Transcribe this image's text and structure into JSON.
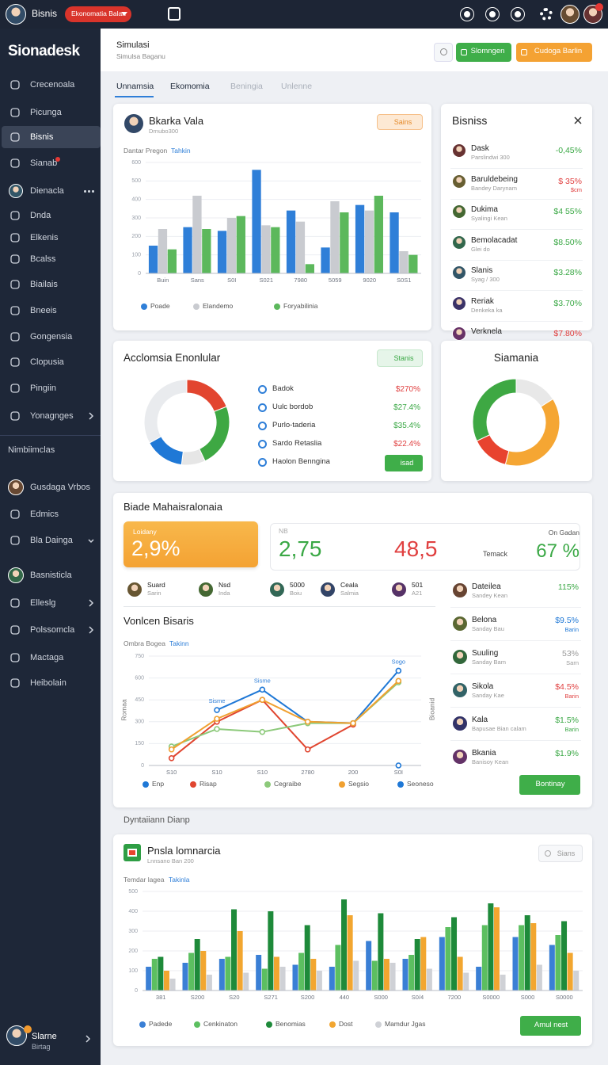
{
  "topbar": {
    "brand": "Bisnis",
    "pill": "Ekonomatia Balan"
  },
  "sidebar": {
    "logo": "Sionadesk",
    "items": [
      "Crecenoala",
      "Picunga",
      "Bisnis",
      "Sianab",
      "Dienacla",
      "Dnda",
      "Elkenis",
      "Bcalss",
      "Biailais",
      "Bneeis",
      "Gongensia",
      "Clopusia",
      "Pingiin",
      "Yonagnges"
    ],
    "active": 2,
    "section": "Nimbiimclas",
    "items2": [
      "Gusdaga Vrbos",
      "Edmics",
      "Bla Dainga",
      "Basnisticla",
      "Elleslg",
      "Polssomcla",
      "Mactaga",
      "Heibolain"
    ],
    "user": {
      "name": "Slarne",
      "sub": "Birtag"
    }
  },
  "header": {
    "title": "Simulasi",
    "subtitle": "Simulsa Baganu",
    "buttons": [
      "Slomngen",
      "Cudoga Barlin"
    ]
  },
  "tabs": [
    "Unnamsia",
    "Ekomomia",
    "Beningia",
    "Unlenne"
  ],
  "profile_card": {
    "name": "Bkarka Vala",
    "sub": "Drnubo300",
    "button": "Sains",
    "chart": {
      "type": "bar",
      "subtitle": "Dantar Pregon",
      "subtitle_accent": "Tahkin",
      "categories": [
        "Buin",
        "Sans",
        "S0I",
        "S021",
        "7980",
        "5059",
        "9020",
        "S0S1"
      ],
      "ylim": [
        0,
        600
      ],
      "yticks": [
        0,
        100,
        200,
        300,
        400,
        500,
        600
      ],
      "series": [
        {
          "name": "Poade",
          "color": "#2f7fd8",
          "values": [
            150,
            250,
            230,
            560,
            340,
            140,
            370,
            330
          ]
        },
        {
          "name": "Elandemo",
          "color": "#c9cbd0",
          "values": [
            240,
            420,
            300,
            260,
            280,
            390,
            340,
            120
          ]
        },
        {
          "name": "Foryabilinia",
          "color": "#5cb85c",
          "values": [
            130,
            240,
            310,
            250,
            50,
            330,
            420,
            100
          ]
        }
      ]
    }
  },
  "list_card": {
    "title": "Bisniss",
    "rows": [
      {
        "name": "Dask",
        "sub": "Parslindwi 300",
        "value": "-0,45%",
        "color": "#3aa845"
      },
      {
        "name": "Baruldebeing",
        "sub": "Bandey Darynam",
        "value": "$ 35%",
        "note": "$cm",
        "color": "#e04040"
      },
      {
        "name": "Dukima",
        "sub": "Syalingi Kean",
        "value": "$4 55%",
        "color": "#3aa845"
      },
      {
        "name": "Bemolacadat",
        "sub": "Glei do",
        "value": "$8.50%",
        "color": "#3aa845"
      },
      {
        "name": "Slanis",
        "sub": "Syag / 300",
        "value": "$3.28%",
        "color": "#3aa845"
      },
      {
        "name": "Reriak",
        "sub": "Denkeka ka",
        "value": "$3.70%",
        "color": "#3aa845"
      },
      {
        "name": "Verknela",
        "value": "$7.80%",
        "color": "#e04040"
      }
    ]
  },
  "donut_card": {
    "title": "Acclomsia Enonlular",
    "button": "Stanis",
    "chart": {
      "type": "pie",
      "values": [
        19,
        24,
        9,
        15,
        33
      ],
      "colors": [
        "#e2452f",
        "#3ea843",
        "#e6e6e6",
        "#1f78d6",
        "#e9ebee"
      ]
    },
    "legend": [
      {
        "label": "Badok",
        "value": "$270%",
        "color": "#e04040"
      },
      {
        "label": "Uulc bordob",
        "value": "$27.4%",
        "color": "#3aa845"
      },
      {
        "label": "Purlo-taderia",
        "value": "$35.4%",
        "color": "#3aa845"
      },
      {
        "label": "Sardo Retaslia",
        "value": "$22.4%",
        "color": "#e04040"
      },
      {
        "label": "Haolon Benngina"
      }
    ],
    "action": "isad"
  },
  "ring_card": {
    "title": "Siamania",
    "chart": {
      "type": "pie",
      "values": [
        16,
        38,
        14,
        32
      ],
      "colors": [
        "#e8e8e8",
        "#f5a633",
        "#e8432f",
        "#3ea843"
      ]
    }
  },
  "summary_card": {
    "title": "Biade Mahaisralonaia",
    "kpi": {
      "label": "Loidany",
      "value": "2,9%"
    },
    "stats": {
      "label": "NB",
      "a": "2,75",
      "b": "48,5",
      "note": "Temack",
      "side_label": "On Gadan",
      "side_value": "67 %"
    },
    "people": [
      {
        "name": "Suard",
        "sub": "Sarin"
      },
      {
        "name": "Nsd",
        "sub": "Inda"
      },
      {
        "name": "5000",
        "sub": "Boiu"
      },
      {
        "name": "Ceala",
        "sub": "Salmia"
      },
      {
        "name": "501",
        "sub": "A21"
      }
    ],
    "chart": {
      "type": "line",
      "title": "Vonlcen Bisaris",
      "subtitle": "Ombra Bogea",
      "subtitle_accent": "Takinn",
      "ylabel": "Romaa",
      "y2label": "Bioanid",
      "categories": [
        "S10",
        "S10",
        "S10",
        "2780",
        "200",
        "S0I"
      ],
      "ylim": [
        0,
        750
      ],
      "yticks": [
        0,
        150,
        300,
        450,
        600,
        750
      ],
      "series": [
        {
          "name": "Enp",
          "color": "#1f78d6",
          "values": [
            null,
            380,
            520,
            300,
            290,
            650
          ]
        },
        {
          "name": "Risap",
          "color": "#e0452f",
          "values": [
            50,
            300,
            450,
            110,
            280,
            null
          ]
        },
        {
          "name": "Cegraibe",
          "color": "#8cc97a",
          "values": [
            130,
            250,
            230,
            290,
            290,
            570
          ]
        },
        {
          "name": "Segsio",
          "color": "#f0a030",
          "values": [
            110,
            320,
            450,
            300,
            290,
            580
          ]
        },
        {
          "name": "Seoneso",
          "color": "#1f78d6",
          "values": [
            null,
            null,
            null,
            null,
            null,
            0
          ]
        }
      ],
      "annotations": [
        {
          "text": "Sisme",
          "series": 0,
          "index": 1
        },
        {
          "text": "Sisme",
          "series": 0,
          "index": 2
        },
        {
          "text": "Sogo",
          "series": 0,
          "index": 5
        }
      ]
    },
    "list": [
      {
        "name": "Dateilea",
        "sub": "Sandey Kean",
        "value": "115%",
        "color": "#3aa845"
      },
      {
        "name": "Belona",
        "sub": "Sanday Bau",
        "value": "$9.5%",
        "note": "Barin",
        "color": "#1f78d6"
      },
      {
        "name": "Suuling",
        "sub": "Sanday Bam",
        "value": "53%",
        "note": "Sarn",
        "color": "#999999"
      },
      {
        "name": "Sikola",
        "sub": "Sanday Kae",
        "value": "$4.5%",
        "note": "Barin",
        "color": "#e04040"
      },
      {
        "name": "Kala",
        "sub": "Bapusae Bian calam",
        "value": "$1.5%",
        "note": "Barin",
        "color": "#3aa845"
      },
      {
        "name": "Bkania",
        "sub": "Banisoy Kean",
        "value": "$1.9%",
        "color": "#3aa845"
      }
    ],
    "button": "Bontinay"
  },
  "section_title": "Dyntaiiann Dianp",
  "bottom_card": {
    "title": "Pnsla lomnarcia",
    "sub": "Lnnsano Ban 200",
    "search": "Sians",
    "chart": {
      "type": "bar",
      "subtitle": "Temdar lagea",
      "subtitle_accent": "Takinla",
      "categories": [
        "381",
        "S200",
        "S20",
        "S271",
        "S200",
        "440",
        "S000",
        "S0/4",
        "7200",
        "S0000",
        "S000",
        "S0000"
      ],
      "ylim": [
        0,
        500
      ],
      "yticks": [
        0,
        100,
        200,
        300,
        400,
        500
      ],
      "series": [
        {
          "name": "Padede",
          "color": "#3a7fd5",
          "values": [
            120,
            140,
            160,
            180,
            130,
            120,
            250,
            160,
            270,
            120,
            270,
            230
          ]
        },
        {
          "name": "Cenkinaton",
          "color": "#5cbf60",
          "values": [
            160,
            190,
            170,
            110,
            190,
            230,
            150,
            180,
            320,
            330,
            330,
            280
          ]
        },
        {
          "name": "Benomias",
          "color": "#1e8a3a",
          "values": [
            170,
            260,
            410,
            400,
            330,
            460,
            390,
            260,
            370,
            440,
            380,
            350
          ]
        },
        {
          "name": "Dost",
          "color": "#f2a630",
          "values": [
            100,
            200,
            300,
            170,
            160,
            380,
            160,
            270,
            170,
            420,
            340,
            190
          ]
        },
        {
          "name": "Mamdur Jgas",
          "color": "#cfd1d6",
          "values": [
            60,
            80,
            90,
            120,
            100,
            150,
            140,
            110,
            90,
            80,
            130,
            100
          ]
        }
      ]
    },
    "button": "Amul nest"
  }
}
